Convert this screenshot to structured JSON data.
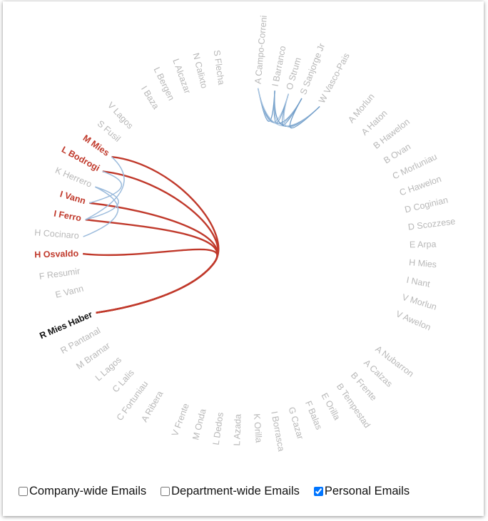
{
  "nodes": [
    {
      "label": "A Campo-Correni"
    },
    {
      "label": "I Barranco"
    },
    {
      "label": "O Strum"
    },
    {
      "label": "S Sanjorge Jr"
    },
    {
      "label": "W Vasco-Pais"
    },
    {
      "label": "A Morlun"
    },
    {
      "label": "A Haton"
    },
    {
      "label": "B Hawelon"
    },
    {
      "label": "B Ovan"
    },
    {
      "label": "C Morluniau"
    },
    {
      "label": "C Hawelon"
    },
    {
      "label": "D Coginian"
    },
    {
      "label": "D Scozzese"
    },
    {
      "label": "E Arpa"
    },
    {
      "label": "H Mies"
    },
    {
      "label": "I Nant"
    },
    {
      "label": "V Morlun"
    },
    {
      "label": "V Awelon"
    },
    {
      "label": "A Nubarron"
    },
    {
      "label": "A Calzas"
    },
    {
      "label": "B Frente"
    },
    {
      "label": "B Tempestad"
    },
    {
      "label": "E Orilla"
    },
    {
      "label": "F Balas"
    },
    {
      "label": "G Cazar"
    },
    {
      "label": "I Borrasca"
    },
    {
      "label": "K Orilla"
    },
    {
      "label": "L Azada"
    },
    {
      "label": "L Dedos"
    },
    {
      "label": "M Onda"
    },
    {
      "label": "V Frente"
    },
    {
      "label": "A Ribera"
    },
    {
      "label": "C Fortuniau"
    },
    {
      "label": "C Lalis"
    },
    {
      "label": "L Lagos"
    },
    {
      "label": "M Bramar"
    },
    {
      "label": "R Pantanal"
    },
    {
      "label": "R Mies Haber"
    },
    {
      "label": "E Vann"
    },
    {
      "label": "F Resumir"
    },
    {
      "label": "H Osvaldo"
    },
    {
      "label": "H Cocinaro"
    },
    {
      "label": "I Ferro"
    },
    {
      "label": "I Vann"
    },
    {
      "label": "K Herrero"
    },
    {
      "label": "L Bodrogi"
    },
    {
      "label": "M Mies"
    },
    {
      "label": "S Fusil"
    },
    {
      "label": "V Lagos"
    },
    {
      "label": "I Baza"
    },
    {
      "label": "L Bergen"
    },
    {
      "label": "L Alcazar"
    },
    {
      "label": "N Calixto"
    },
    {
      "label": "S Flecha"
    }
  ],
  "controls": [
    {
      "label": "Company-wide Emails",
      "checked": false
    },
    {
      "label": "Department-wide Emails",
      "checked": false
    },
    {
      "label": "Personal Emails",
      "checked": true
    }
  ]
}
